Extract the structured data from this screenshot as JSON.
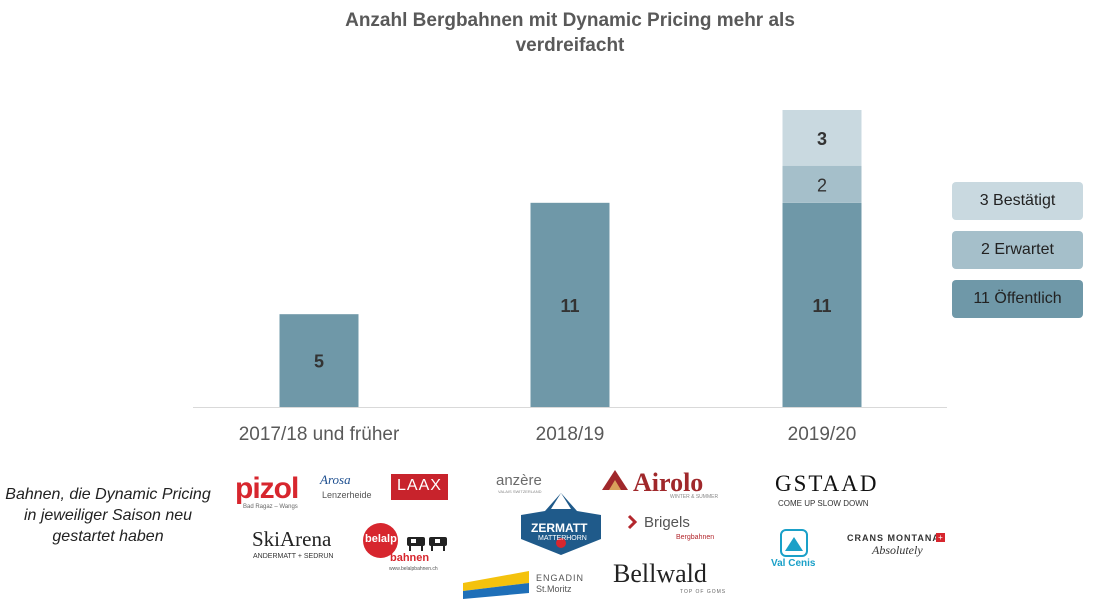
{
  "chart_data": {
    "type": "bar",
    "stacked": true,
    "title": "Anzahl Bergbahnen mit Dynamic Pricing mehr als verdreifacht",
    "title_lines": [
      "Anzahl Bergbahnen mit Dynamic Pricing mehr als",
      "verdreifacht"
    ],
    "categories": [
      "2017/18 und früher",
      "2018/19",
      "2019/20"
    ],
    "series": [
      {
        "name": "Öffentlich",
        "values": [
          5,
          11,
          11
        ],
        "color": "#6f98a8",
        "legend": "11 Öffentlich"
      },
      {
        "name": "Erwartet",
        "values": [
          0,
          0,
          2
        ],
        "color": "#a5bfca",
        "legend": "2 Erwartet"
      },
      {
        "name": "Bestätigt",
        "values": [
          0,
          0,
          3
        ],
        "color": "#c9d9e0",
        "legend": "3 Bestätigt"
      }
    ],
    "ylim": [
      0,
      16
    ],
    "grid": false,
    "legend_position": "right"
  },
  "caption": "Bahnen, die Dynamic Pricing in jeweiliger Saison neu gestartet haben",
  "logos": {
    "pizol": "pizol",
    "pizol_sub": "Bad Ragaz – Wangs",
    "arosa": "Arosa",
    "arosa_sub": "Lenzerheide",
    "laax": "LAAX",
    "anzere": "anzère",
    "anzere_sub": "VALAIS SWITZERLAND",
    "airolo": "Airolo",
    "airolo_sub": "WINTER & SUMMER",
    "gstaad": "GSTAAD",
    "gstaad_sub": "COME UP  SLOW DOWN",
    "skiarena": "SkiArena",
    "skiarena_sub": "ANDERMATT + SEDRUN",
    "belalp": "belalp",
    "belalp_sub": "bahnen",
    "belalp_url": "www.belalpbahnen.ch",
    "zermatt": "ZERMATT",
    "zermatt_sub": "MATTERHORN",
    "brigels": "Brigels",
    "brigels_sub": "Bergbahnen",
    "valcenis": "Val Cenis",
    "crans": "CRANS MONTANA",
    "crans_sub": "Absolutely",
    "engadin": "ENGADIN",
    "engadin_sub": "St.Moritz",
    "bellwald": "Bellwald",
    "bellwald_sub": "TOP OF GOMS"
  },
  "colors": {
    "title": "#595959",
    "axis": "#d9d9d9",
    "pizol": "#d7262e",
    "laax": "#c8232c",
    "airolo": "#a0282b",
    "zermatt": "#1f5a8a",
    "valcenis": "#1aa0c8",
    "brigels": "#b3272d",
    "engadin_yellow": "#f4c20d",
    "engadin_blue": "#1e6fb8"
  }
}
